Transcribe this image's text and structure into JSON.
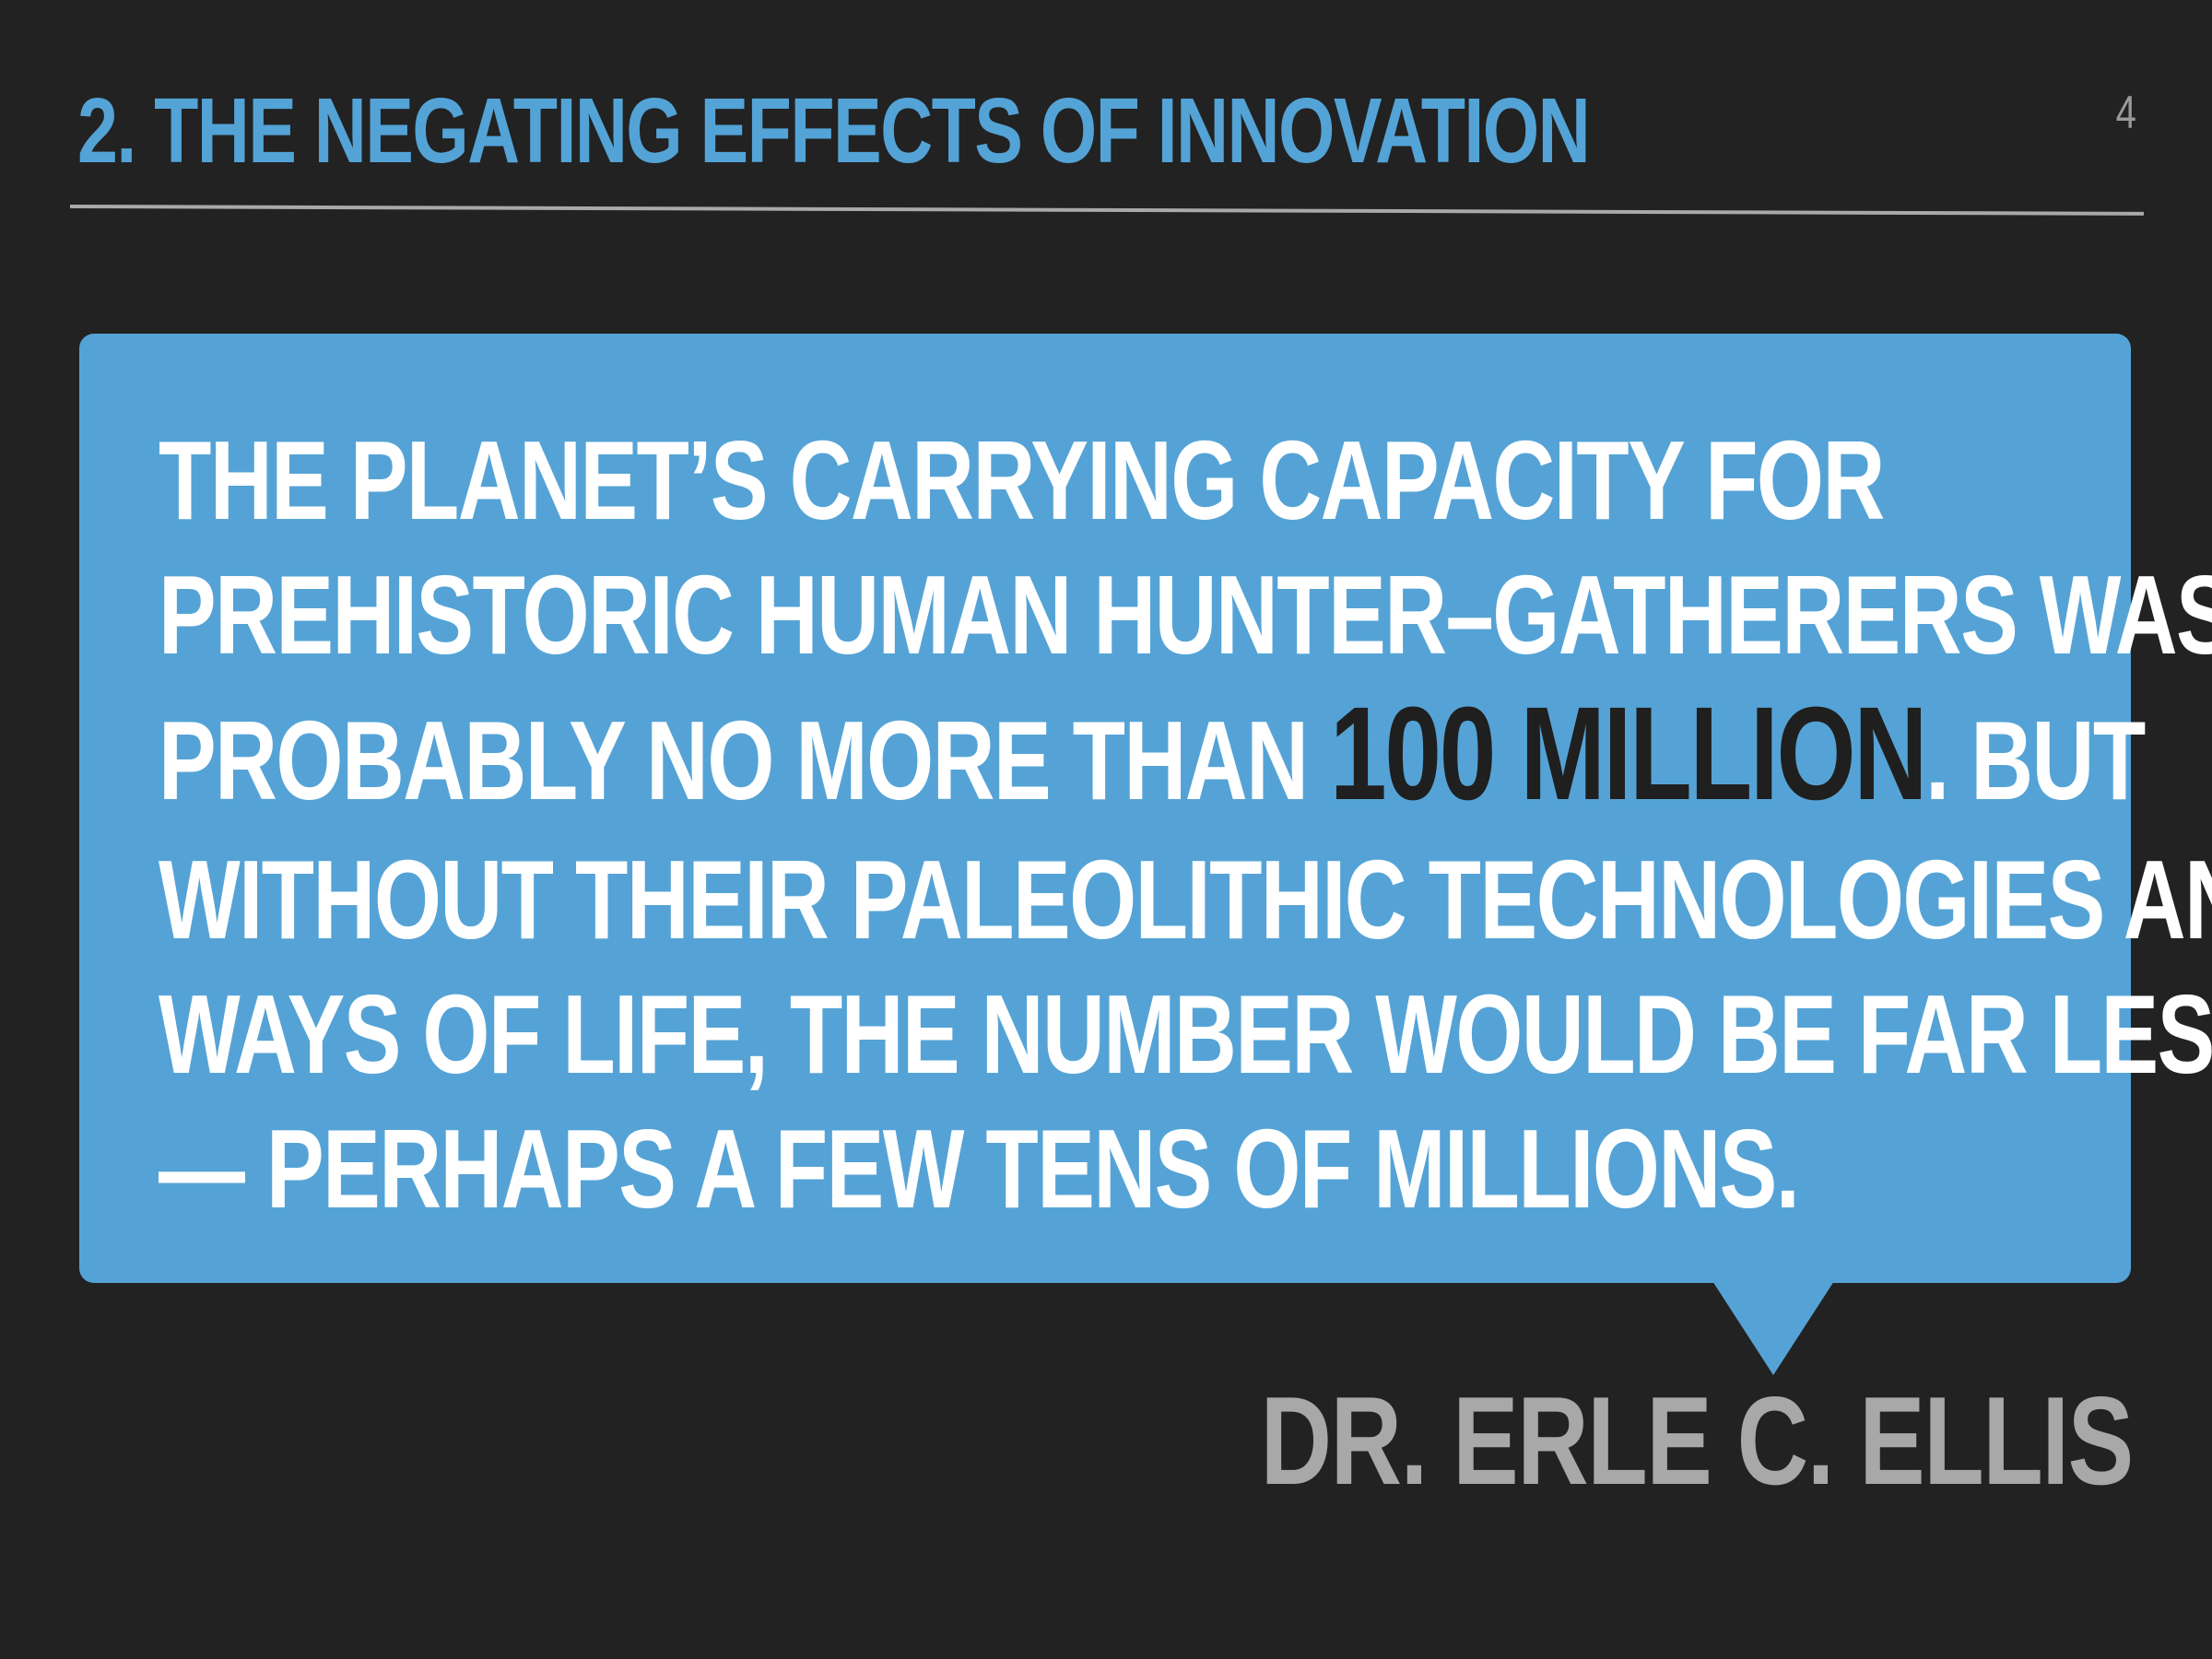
{
  "slide": {
    "title": "2. THE NEGATING EFFECTS OF INNOVATION",
    "number": "4"
  },
  "quote": {
    "line1": "THE PLANET’S CARRYING CAPACITY FOR",
    "line2": "PREHISTORIC HUMAN HUNTER–GATHERERS WAS",
    "line3_before": "PROBABLY NO MORE THAN ",
    "line3_highlight": "100 MILLION",
    "line3_after": ". BUT",
    "line4": "WITHOUT THEIR PALEOLITHIC TECHNOLOGIES AND",
    "line5": "WAYS OF LIFE, THE NUMBER WOULD BE FAR LESS",
    "line6": "— PERHAPS A FEW TENS OF MILLIONS."
  },
  "attribution": "DR. ERLE C. ELLIS",
  "colors": {
    "background": "#222222",
    "accent_blue": "#55a3d6",
    "quote_text": "#ffffff",
    "highlight_text": "#1f1f1f",
    "muted_gray": "#a8a8a8"
  }
}
